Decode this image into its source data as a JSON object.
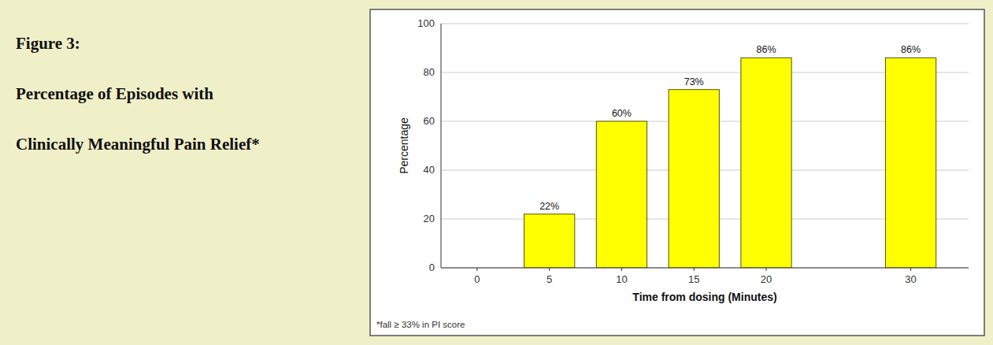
{
  "chart_data": {
    "type": "bar",
    "title": [
      "Figure 3:",
      "Percentage of Episodes with",
      "Clinically Meaningful Pain Relief*"
    ],
    "x": [
      5,
      10,
      15,
      20,
      30
    ],
    "values": [
      22,
      60,
      73,
      86,
      86
    ],
    "value_labels": [
      "22%",
      "60%",
      "73%",
      "86%",
      "86%"
    ],
    "data_labels": true,
    "color": "#FFFF00",
    "xlabel": "Time from dosing (Minutes)",
    "ylabel": "Percentage",
    "xlim": [
      -2.5,
      34
    ],
    "xticks": [
      0,
      5,
      10,
      15,
      20,
      30
    ],
    "ylim": [
      0,
      100
    ],
    "yticks": [
      0,
      20,
      40,
      60,
      80,
      100
    ],
    "grid": true,
    "annotations": [
      "*fall ≥ 33% in PI score"
    ]
  }
}
